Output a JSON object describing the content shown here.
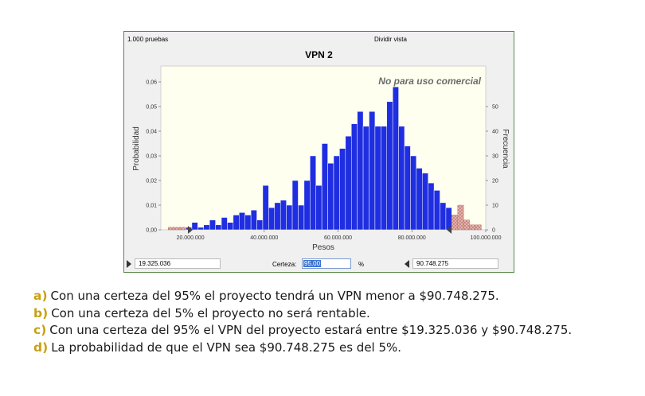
{
  "window": {
    "trials_label": "1.000 pruebas",
    "split_view_label": "Dividir vista",
    "title": "VPN 2",
    "watermark": "No para uso comercial"
  },
  "chart_data": {
    "type": "bar",
    "title": "VPN 2",
    "xlabel": "Pesos",
    "ylabel_left": "Probabilidad",
    "ylabel_right": "Frecuencia",
    "xlim": [
      12000000,
      100000000
    ],
    "ylim_left": [
      0,
      0.06
    ],
    "ylim_right": [
      0,
      60
    ],
    "x_ticks": [
      "20.000.000",
      "40.000.000",
      "60.000.000",
      "80.000.000",
      "100.000.000"
    ],
    "x_tick_values": [
      20000000,
      40000000,
      60000000,
      80000000,
      100000000
    ],
    "y_ticks_left": [
      "0,00",
      "0,01",
      "0,02",
      "0,03",
      "0,04",
      "0,05",
      "0,06"
    ],
    "y_ticks_right": [
      "0",
      "10",
      "20",
      "30",
      "40",
      "50"
    ],
    "bin_width": 1600000,
    "bin_start": 14000000,
    "frequencies": [
      1,
      1,
      1,
      1,
      3,
      1,
      2,
      4,
      2,
      5,
      3,
      6,
      7,
      6,
      8,
      4,
      18,
      9,
      11,
      12,
      10,
      20,
      10,
      20,
      30,
      18,
      35,
      27,
      30,
      33,
      38,
      43,
      48,
      42,
      48,
      42,
      42,
      52,
      58,
      42,
      34,
      30,
      25,
      23,
      19,
      16,
      11,
      9,
      6,
      10,
      4,
      2,
      2
    ],
    "bar_color": "#1f2ee0",
    "tail_color": "#d9a49e",
    "lower_certainty_bound": 19325036,
    "upper_certainty_bound": 90748275
  },
  "controls": {
    "left_value": "19.325.036",
    "certainty_label": "Certeza:",
    "certainty_value": "95,00",
    "percent_sign": "%",
    "right_value": "90.748.275"
  },
  "options": [
    {
      "letter": "a)",
      "text": "Con una certeza del 95% el proyecto tendrá un VPN menor a $90.748.275."
    },
    {
      "letter": "b)",
      "text": "Con una certeza del 5% el proyecto no será rentable."
    },
    {
      "letter": "c)",
      "text": "Con una certeza del 95% el VPN del proyecto estará entre $19.325.036 y $90.748.275."
    },
    {
      "letter": "d)",
      "text": "La probabilidad de que el VPN sea $90.748.275 es del 5%."
    }
  ]
}
